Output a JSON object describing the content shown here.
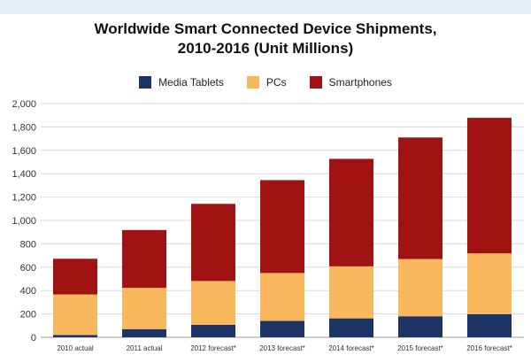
{
  "chart_data": {
    "type": "bar",
    "stacked": true,
    "title": "Worldwide Smart Connected Device Shipments,",
    "subtitle": "2010-2016 (Unit Millions)",
    "categories": [
      "2010 actual",
      "2011 actual",
      "2012 forecast*",
      "2013 forecast*",
      "2014 forecast*",
      "2015 forecast*",
      "2016 forecast*"
    ],
    "series": [
      {
        "name": "Media Tablets",
        "color": "#1c3466",
        "values": [
          20,
          70,
          107,
          140,
          162,
          180,
          198
        ]
      },
      {
        "name": "PCs",
        "color": "#f9b75e",
        "values": [
          347,
          353,
          375,
          410,
          445,
          490,
          520
        ]
      },
      {
        "name": "Smartphones",
        "color": "#a01312",
        "values": [
          305,
          495,
          660,
          795,
          920,
          1040,
          1160
        ]
      }
    ],
    "ylim": [
      0,
      2000
    ],
    "yticks": [
      "0",
      "200",
      "400",
      "600",
      "800",
      "1,000",
      "1,200",
      "1,400",
      "1,600",
      "1,800",
      "2,000"
    ],
    "ytick_values": [
      0,
      200,
      400,
      600,
      800,
      1000,
      1200,
      1400,
      1600,
      1800,
      2000
    ],
    "xlabel": "",
    "ylabel": "",
    "grid": true,
    "legend_position": "top-center"
  }
}
